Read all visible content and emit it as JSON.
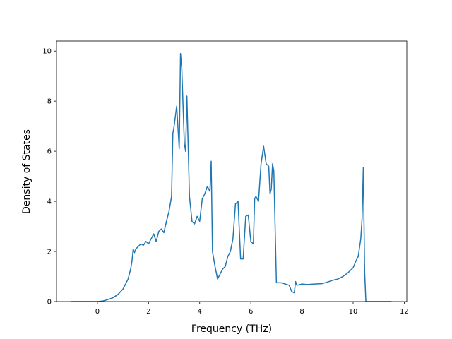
{
  "chart_data": {
    "type": "line",
    "title": "",
    "xlabel": "Frequency (THz)",
    "ylabel": "Density of States",
    "xlim": [
      -1.6,
      12.1
    ],
    "ylim": [
      0,
      10.4
    ],
    "xticks": [
      0,
      2,
      4,
      6,
      8,
      10,
      12
    ],
    "yticks": [
      0,
      2,
      4,
      6,
      8,
      10
    ],
    "grid": false,
    "series": [
      {
        "color": "#1f77b4",
        "x": [
          -1.05,
          -0.5,
          0.0,
          0.2,
          0.4,
          0.6,
          0.8,
          1.0,
          1.1,
          1.2,
          1.3,
          1.35,
          1.4,
          1.45,
          1.5,
          1.6,
          1.7,
          1.8,
          1.9,
          2.0,
          2.1,
          2.2,
          2.3,
          2.4,
          2.5,
          2.6,
          2.7,
          2.8,
          2.9,
          2.95,
          3.0,
          3.1,
          3.2,
          3.25,
          3.3,
          3.4,
          3.45,
          3.5,
          3.6,
          3.7,
          3.8,
          3.9,
          4.0,
          4.1,
          4.2,
          4.3,
          4.4,
          4.45,
          4.5,
          4.6,
          4.7,
          4.8,
          4.9,
          5.0,
          5.1,
          5.2,
          5.3,
          5.4,
          5.5,
          5.6,
          5.7,
          5.8,
          5.9,
          6.0,
          6.1,
          6.15,
          6.2,
          6.3,
          6.4,
          6.5,
          6.6,
          6.7,
          6.75,
          6.8,
          6.85,
          6.9,
          7.0,
          7.2,
          7.5,
          7.6,
          7.7,
          7.75,
          7.8,
          8.0,
          8.2,
          8.5,
          8.8,
          9.0,
          9.2,
          9.4,
          9.6,
          9.8,
          10.0,
          10.1,
          10.2,
          10.3,
          10.35,
          10.4,
          10.45,
          10.5,
          10.6,
          11.0,
          11.5
        ],
        "y": [
          0,
          0,
          0,
          0.02,
          0.08,
          0.15,
          0.28,
          0.5,
          0.7,
          0.9,
          1.3,
          1.6,
          2.1,
          1.95,
          2.1,
          2.2,
          2.3,
          2.25,
          2.4,
          2.3,
          2.5,
          2.7,
          2.4,
          2.8,
          2.9,
          2.75,
          3.2,
          3.6,
          4.2,
          6.7,
          7.0,
          7.8,
          6.1,
          9.9,
          9.3,
          6.3,
          6.0,
          8.2,
          4.2,
          3.2,
          3.1,
          3.4,
          3.2,
          4.1,
          4.3,
          4.6,
          4.4,
          5.6,
          2.0,
          1.4,
          0.9,
          1.1,
          1.3,
          1.4,
          1.8,
          2.0,
          2.5,
          3.9,
          4.0,
          1.7,
          1.7,
          3.4,
          3.45,
          2.4,
          2.3,
          4.1,
          4.2,
          4.0,
          5.5,
          6.2,
          5.5,
          5.4,
          4.3,
          4.5,
          5.5,
          5.2,
          0.75,
          0.75,
          0.65,
          0.4,
          0.35,
          0.8,
          0.65,
          0.7,
          0.68,
          0.7,
          0.72,
          0.78,
          0.85,
          0.9,
          1.0,
          1.15,
          1.35,
          1.6,
          1.8,
          2.5,
          3.3,
          5.35,
          1.2,
          0.0,
          0.0,
          0.0,
          0.0
        ]
      }
    ]
  }
}
